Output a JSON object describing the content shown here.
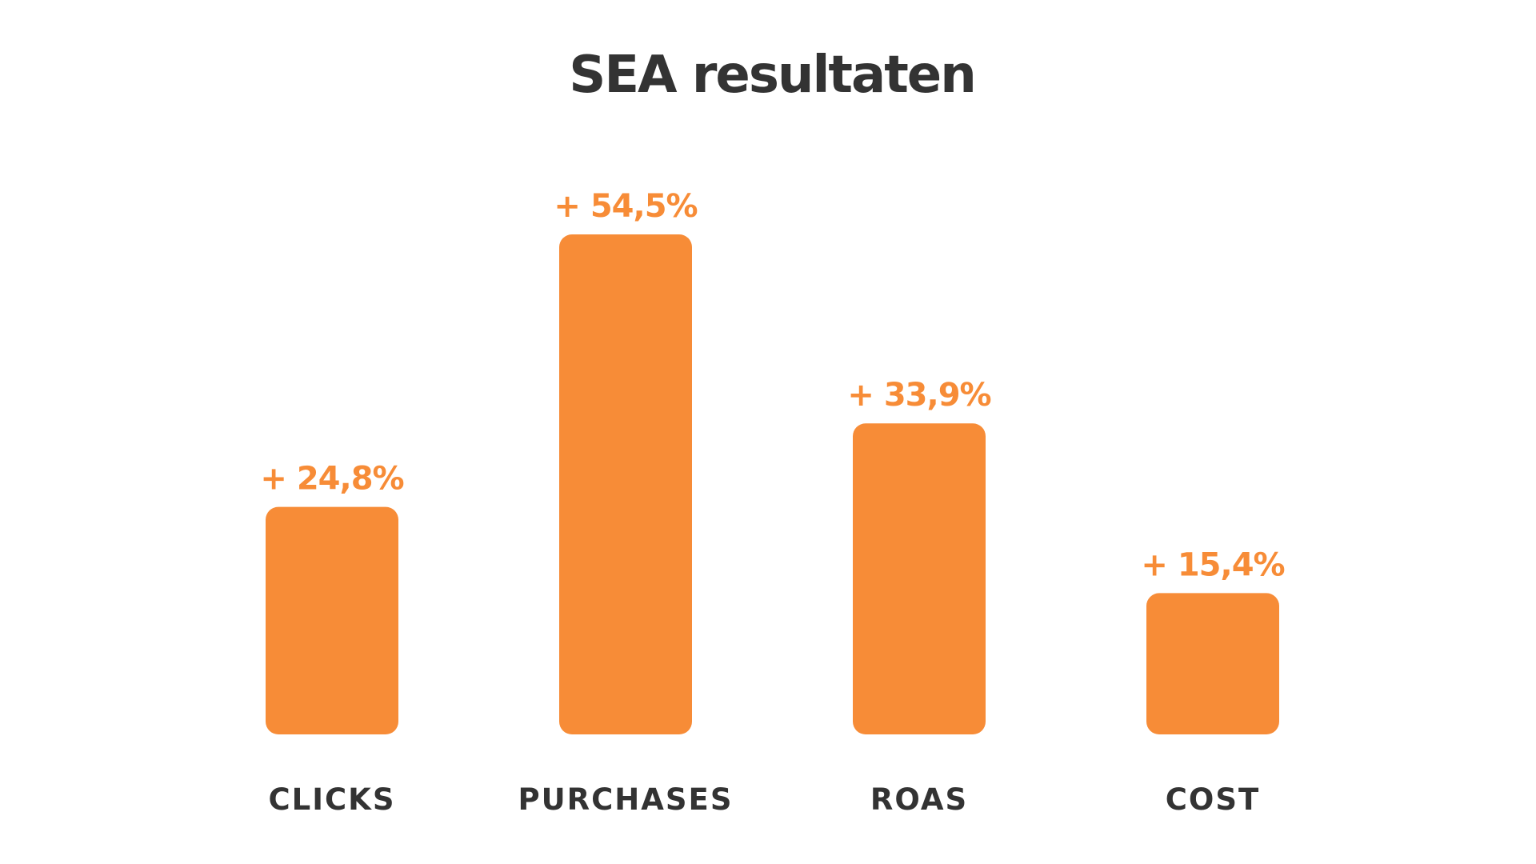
{
  "chart_data": {
    "type": "bar",
    "title": "SEA resultaten",
    "categories": [
      "CLICKS",
      "PURCHASES",
      "ROAS",
      "COST"
    ],
    "values": [
      24.8,
      54.5,
      33.9,
      15.4
    ],
    "value_labels": [
      "+ 24,8%",
      "+ 54,5%",
      "+ 33,9%",
      "+ 15,4%"
    ],
    "xlabel": "",
    "ylabel": "",
    "grid": false,
    "legend": "none"
  },
  "colors": {
    "bar": "#F78C37",
    "value_label": "#F78C37",
    "text": "#333333",
    "background": "#FFFFFF"
  }
}
